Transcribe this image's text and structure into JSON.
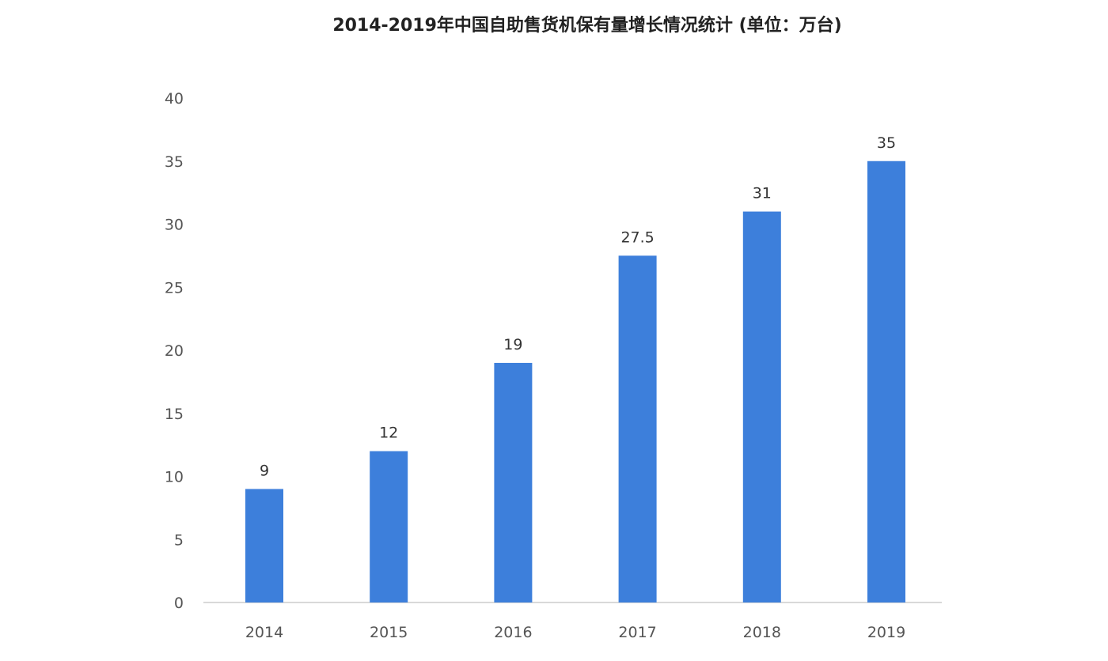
{
  "chart_data": {
    "type": "bar",
    "title": "2014-2019年中国自助售货机保有量增长情况统计 (单位：万台)",
    "categories": [
      "2014",
      "2015",
      "2016",
      "2017",
      "2018",
      "2019"
    ],
    "values": [
      9,
      12,
      19,
      27.5,
      31,
      35
    ],
    "data_labels": [
      "9",
      "12",
      "19",
      "27.5",
      "31",
      "35"
    ],
    "xlabel": "",
    "ylabel": "",
    "ylim": [
      0,
      40
    ],
    "yticks": [
      0,
      5,
      10,
      15,
      20,
      25,
      30,
      35,
      40
    ],
    "grid": false,
    "legend": "none",
    "bar_color": "#3d7fdb"
  }
}
